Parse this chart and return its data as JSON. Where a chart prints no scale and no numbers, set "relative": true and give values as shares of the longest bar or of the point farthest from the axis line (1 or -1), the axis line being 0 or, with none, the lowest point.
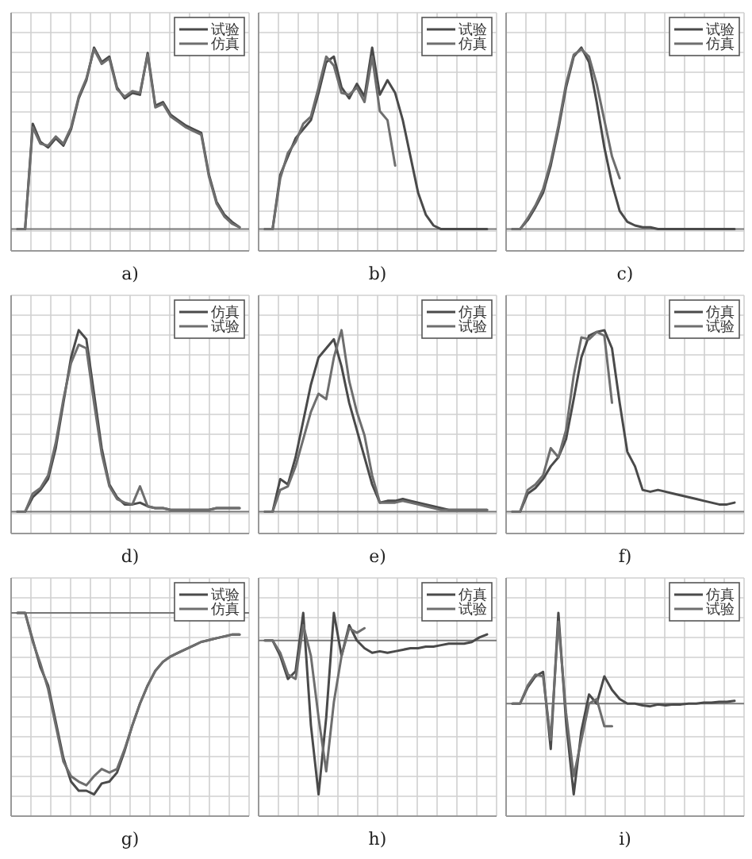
{
  "chart_data": [
    {
      "type": "line",
      "title": "a)",
      "relative": true,
      "grid": true,
      "legend": "top right",
      "categories": [
        null,
        null,
        null,
        null,
        null,
        null,
        null,
        null,
        null,
        null,
        null,
        null,
        null,
        null,
        null,
        null,
        null,
        null,
        null,
        null,
        null,
        null,
        null,
        null,
        null,
        null,
        null,
        null,
        null,
        null
      ],
      "series": [
        {
          "name": "试验",
          "color": "#4a4a4a",
          "values": [
            0,
            0,
            0.58,
            0.48,
            0.45,
            0.5,
            0.46,
            0.55,
            0.72,
            0.82,
            1.0,
            0.92,
            0.95,
            0.78,
            0.72,
            0.75,
            0.74,
            0.97,
            0.68,
            0.7,
            0.63,
            0.6,
            0.57,
            0.55,
            0.53,
            0.3,
            0.15,
            0.08,
            0.04,
            0.01
          ]
        },
        {
          "name": "仿真",
          "color": "#6e6e6e",
          "values": [
            0,
            0,
            0.56,
            0.47,
            0.46,
            0.51,
            0.47,
            0.56,
            0.73,
            0.83,
            0.99,
            0.91,
            0.94,
            0.77,
            0.73,
            0.76,
            0.75,
            0.96,
            0.67,
            0.69,
            0.62,
            0.59,
            0.56,
            0.54,
            0.52,
            0.29,
            0.14,
            0.07,
            0.03,
            0.01
          ]
        }
      ]
    },
    {
      "type": "line",
      "title": "b)",
      "relative": true,
      "grid": true,
      "legend": "top right",
      "categories": [
        null,
        null,
        null,
        null,
        null,
        null,
        null,
        null,
        null,
        null,
        null,
        null,
        null,
        null,
        null,
        null,
        null,
        null,
        null,
        null,
        null,
        null,
        null,
        null,
        null,
        null,
        null,
        null,
        null,
        null
      ],
      "series": [
        {
          "name": "试验",
          "color": "#4a4a4a",
          "values": [
            0,
            0,
            0.3,
            0.4,
            0.5,
            0.55,
            0.6,
            0.75,
            0.92,
            0.95,
            0.78,
            0.72,
            0.8,
            0.73,
            1.0,
            0.74,
            0.82,
            0.75,
            0.6,
            0.4,
            0.2,
            0.08,
            0.02,
            0,
            0,
            0,
            0,
            0,
            0,
            0
          ]
        },
        {
          "name": "仿真",
          "color": "#6e6e6e",
          "values": [
            0,
            0,
            0.28,
            0.42,
            0.48,
            0.58,
            0.62,
            0.78,
            0.95,
            0.9,
            0.75,
            0.74,
            0.78,
            0.7,
            0.95,
            0.65,
            0.6,
            0.35,
            null,
            null,
            null,
            null,
            null,
            null,
            null,
            null,
            null,
            null,
            null,
            null
          ]
        }
      ]
    },
    {
      "type": "line",
      "title": "c)",
      "relative": true,
      "grid": true,
      "legend": "top right",
      "categories": [
        null,
        null,
        null,
        null,
        null,
        null,
        null,
        null,
        null,
        null,
        null,
        null,
        null,
        null,
        null,
        null,
        null,
        null,
        null,
        null,
        null,
        null,
        null,
        null,
        null,
        null,
        null,
        null,
        null,
        null
      ],
      "series": [
        {
          "name": "试验",
          "color": "#4a4a4a",
          "values": [
            0,
            0,
            0.05,
            0.12,
            0.2,
            0.35,
            0.55,
            0.78,
            0.95,
            1.0,
            0.92,
            0.7,
            0.45,
            0.25,
            0.1,
            0.04,
            0.02,
            0.01,
            0.01,
            0,
            0,
            0,
            0,
            0,
            0,
            0,
            0,
            0,
            0,
            0
          ]
        },
        {
          "name": "仿真",
          "color": "#6e6e6e",
          "values": [
            0,
            0,
            0.06,
            0.13,
            0.22,
            0.37,
            0.57,
            0.8,
            0.96,
            0.99,
            0.95,
            0.8,
            0.6,
            0.4,
            0.28,
            null,
            null,
            null,
            null,
            null,
            null,
            null,
            null,
            null,
            null,
            null,
            null,
            null,
            null,
            null
          ]
        }
      ]
    },
    {
      "type": "line",
      "title": "d)",
      "relative": true,
      "grid": true,
      "legend": "top right",
      "categories": [
        null,
        null,
        null,
        null,
        null,
        null,
        null,
        null,
        null,
        null,
        null,
        null,
        null,
        null,
        null,
        null,
        null,
        null,
        null,
        null,
        null,
        null,
        null,
        null,
        null,
        null,
        null,
        null,
        null,
        null
      ],
      "series": [
        {
          "name": "仿真",
          "color": "#4a4a4a",
          "values": [
            0,
            0,
            0.08,
            0.12,
            0.18,
            0.35,
            0.6,
            0.85,
            1.0,
            0.95,
            0.65,
            0.35,
            0.15,
            0.08,
            0.04,
            0.04,
            0.05,
            0.03,
            0.02,
            0.02,
            0.01,
            0.01,
            0.01,
            0.01,
            0.01,
            0.01,
            0.02,
            0.02,
            0.02,
            0.02
          ]
        },
        {
          "name": "试验",
          "color": "#6e6e6e",
          "values": [
            0,
            0,
            0.1,
            0.13,
            0.2,
            0.38,
            0.62,
            0.82,
            0.92,
            0.9,
            0.6,
            0.32,
            0.14,
            0.07,
            0.05,
            0.04,
            0.14,
            0.03,
            0.02,
            0.02,
            0.01,
            0.01,
            0.01,
            0.01,
            0.01,
            0.01,
            0.02,
            0.02,
            0.02,
            0.02
          ]
        }
      ]
    },
    {
      "type": "line",
      "title": "e)",
      "relative": true,
      "grid": true,
      "legend": "top right",
      "categories": [
        null,
        null,
        null,
        null,
        null,
        null,
        null,
        null,
        null,
        null,
        null,
        null,
        null,
        null,
        null,
        null,
        null,
        null,
        null,
        null,
        null,
        null,
        null,
        null,
        null,
        null,
        null,
        null,
        null,
        null
      ],
      "series": [
        {
          "name": "仿真",
          "color": "#4a4a4a",
          "values": [
            0,
            0,
            0.18,
            0.15,
            0.3,
            0.5,
            0.7,
            0.85,
            0.9,
            0.95,
            0.8,
            0.6,
            0.45,
            0.3,
            0.15,
            0.05,
            0.06,
            0.06,
            0.07,
            0.06,
            0.05,
            0.04,
            0.03,
            0.02,
            0.01,
            0.01,
            0.01,
            0.01,
            0.01,
            0.01
          ]
        },
        {
          "name": "试验",
          "color": "#6e6e6e",
          "values": [
            0,
            0,
            0.12,
            0.14,
            0.25,
            0.4,
            0.55,
            0.65,
            0.62,
            0.85,
            1.0,
            0.72,
            0.55,
            0.42,
            0.2,
            0.05,
            0.05,
            0.05,
            0.06,
            0.05,
            0.04,
            0.03,
            0.02,
            0.01,
            0.01,
            0.01,
            0.01,
            0.01,
            0.01,
            0.01
          ]
        }
      ]
    },
    {
      "type": "line",
      "title": "f)",
      "relative": true,
      "grid": true,
      "legend": "top right",
      "categories": [
        null,
        null,
        null,
        null,
        null,
        null,
        null,
        null,
        null,
        null,
        null,
        null,
        null,
        null,
        null,
        null,
        null,
        null,
        null,
        null,
        null,
        null,
        null,
        null,
        null,
        null,
        null,
        null,
        null,
        null
      ],
      "series": [
        {
          "name": "仿真",
          "color": "#4a4a4a",
          "values": [
            0,
            0,
            0.1,
            0.13,
            0.18,
            0.25,
            0.3,
            0.4,
            0.62,
            0.85,
            0.97,
            0.99,
            1.0,
            0.9,
            0.6,
            0.33,
            0.25,
            0.12,
            0.11,
            0.12,
            0.11,
            0.1,
            0.09,
            0.08,
            0.07,
            0.06,
            0.05,
            0.04,
            0.04,
            0.05
          ]
        },
        {
          "name": "试验",
          "color": "#6e6e6e",
          "values": [
            0,
            0,
            0.12,
            0.15,
            0.2,
            0.35,
            0.3,
            0.45,
            0.75,
            0.96,
            0.95,
            0.99,
            0.97,
            0.6,
            null,
            null,
            null,
            null,
            null,
            null,
            null,
            null,
            null,
            null,
            null,
            null,
            null,
            null,
            null,
            null
          ]
        }
      ]
    },
    {
      "type": "line",
      "title": "g)",
      "relative": true,
      "grid": true,
      "legend": "top right",
      "categories": [
        null,
        null,
        null,
        null,
        null,
        null,
        null,
        null,
        null,
        null,
        null,
        null,
        null,
        null,
        null,
        null,
        null,
        null,
        null,
        null,
        null,
        null,
        null,
        null,
        null,
        null,
        null,
        null,
        null,
        null
      ],
      "series": [
        {
          "name": "试验",
          "color": "#4a4a4a",
          "values": [
            0,
            0,
            -0.15,
            -0.3,
            -0.4,
            -0.6,
            -0.8,
            -0.93,
            -0.98,
            -0.98,
            -1.0,
            -0.94,
            -0.93,
            -0.88,
            -0.76,
            -0.62,
            -0.5,
            -0.4,
            -0.32,
            -0.27,
            -0.24,
            -0.22,
            -0.2,
            -0.18,
            -0.16,
            -0.15,
            -0.14,
            -0.13,
            -0.12,
            -0.12
          ]
        },
        {
          "name": "仿真",
          "color": "#6e6e6e",
          "values": [
            0,
            0,
            -0.16,
            -0.28,
            -0.42,
            -0.62,
            -0.82,
            -0.9,
            -0.93,
            -0.95,
            -0.9,
            -0.86,
            -0.88,
            -0.86,
            -0.75,
            -0.62,
            -0.5,
            -0.4,
            -0.32,
            -0.27,
            -0.24,
            -0.22,
            -0.2,
            -0.18,
            -0.16,
            -0.15,
            -0.14,
            -0.13,
            -0.12,
            -0.12
          ]
        }
      ]
    },
    {
      "type": "line",
      "title": "h)",
      "relative": true,
      "grid": true,
      "legend": "top right",
      "categories": [
        null,
        null,
        null,
        null,
        null,
        null,
        null,
        null,
        null,
        null,
        null,
        null,
        null,
        null,
        null,
        null,
        null,
        null,
        null,
        null,
        null,
        null,
        null,
        null,
        null,
        null,
        null,
        null,
        null,
        null
      ],
      "series": [
        {
          "name": "仿真",
          "color": "#4a4a4a",
          "values": [
            0,
            0,
            -0.1,
            -0.25,
            -0.2,
            0.18,
            -0.55,
            -1.0,
            -0.5,
            0.18,
            -0.1,
            0.1,
            0.0,
            -0.05,
            -0.08,
            -0.07,
            -0.08,
            -0.07,
            -0.06,
            -0.05,
            -0.05,
            -0.04,
            -0.04,
            -0.03,
            -0.02,
            -0.02,
            -0.02,
            -0.01,
            0.02,
            0.04
          ]
        },
        {
          "name": "试验",
          "color": "#6e6e6e",
          "values": [
            0,
            0,
            -0.08,
            -0.22,
            -0.25,
            0.1,
            -0.1,
            -0.5,
            -0.85,
            -0.4,
            -0.1,
            0.08,
            0.05,
            0.08,
            null,
            null,
            null,
            null,
            null,
            null,
            null,
            null,
            null,
            null,
            null,
            null,
            null,
            null,
            null,
            null
          ]
        }
      ]
    },
    {
      "type": "line",
      "title": "i)",
      "relative": true,
      "grid": true,
      "legend": "top right",
      "categories": [
        null,
        null,
        null,
        null,
        null,
        null,
        null,
        null,
        null,
        null,
        null,
        null,
        null,
        null,
        null,
        null,
        null,
        null,
        null,
        null,
        null,
        null,
        null,
        null,
        null,
        null,
        null,
        null,
        null,
        null
      ],
      "series": [
        {
          "name": "仿真",
          "color": "#4a4a4a",
          "values": [
            0,
            0,
            0.18,
            0.3,
            0.35,
            -0.5,
            1.0,
            -0.2,
            -1.0,
            -0.3,
            0.1,
            0.0,
            0.3,
            0.15,
            0.05,
            0.0,
            0.0,
            -0.02,
            -0.03,
            -0.01,
            -0.02,
            -0.01,
            -0.01,
            0.0,
            0.0,
            0.01,
            0.01,
            0.02,
            0.02,
            0.03
          ]
        },
        {
          "name": "试验",
          "color": "#6e6e6e",
          "values": [
            0,
            0,
            0.2,
            0.32,
            0.3,
            -0.4,
            0.9,
            -0.1,
            -0.8,
            -0.4,
            0.0,
            0.05,
            -0.25,
            -0.25,
            null,
            null,
            null,
            null,
            null,
            null,
            null,
            null,
            null,
            null,
            null,
            null,
            null,
            null,
            null,
            null
          ]
        }
      ]
    }
  ]
}
